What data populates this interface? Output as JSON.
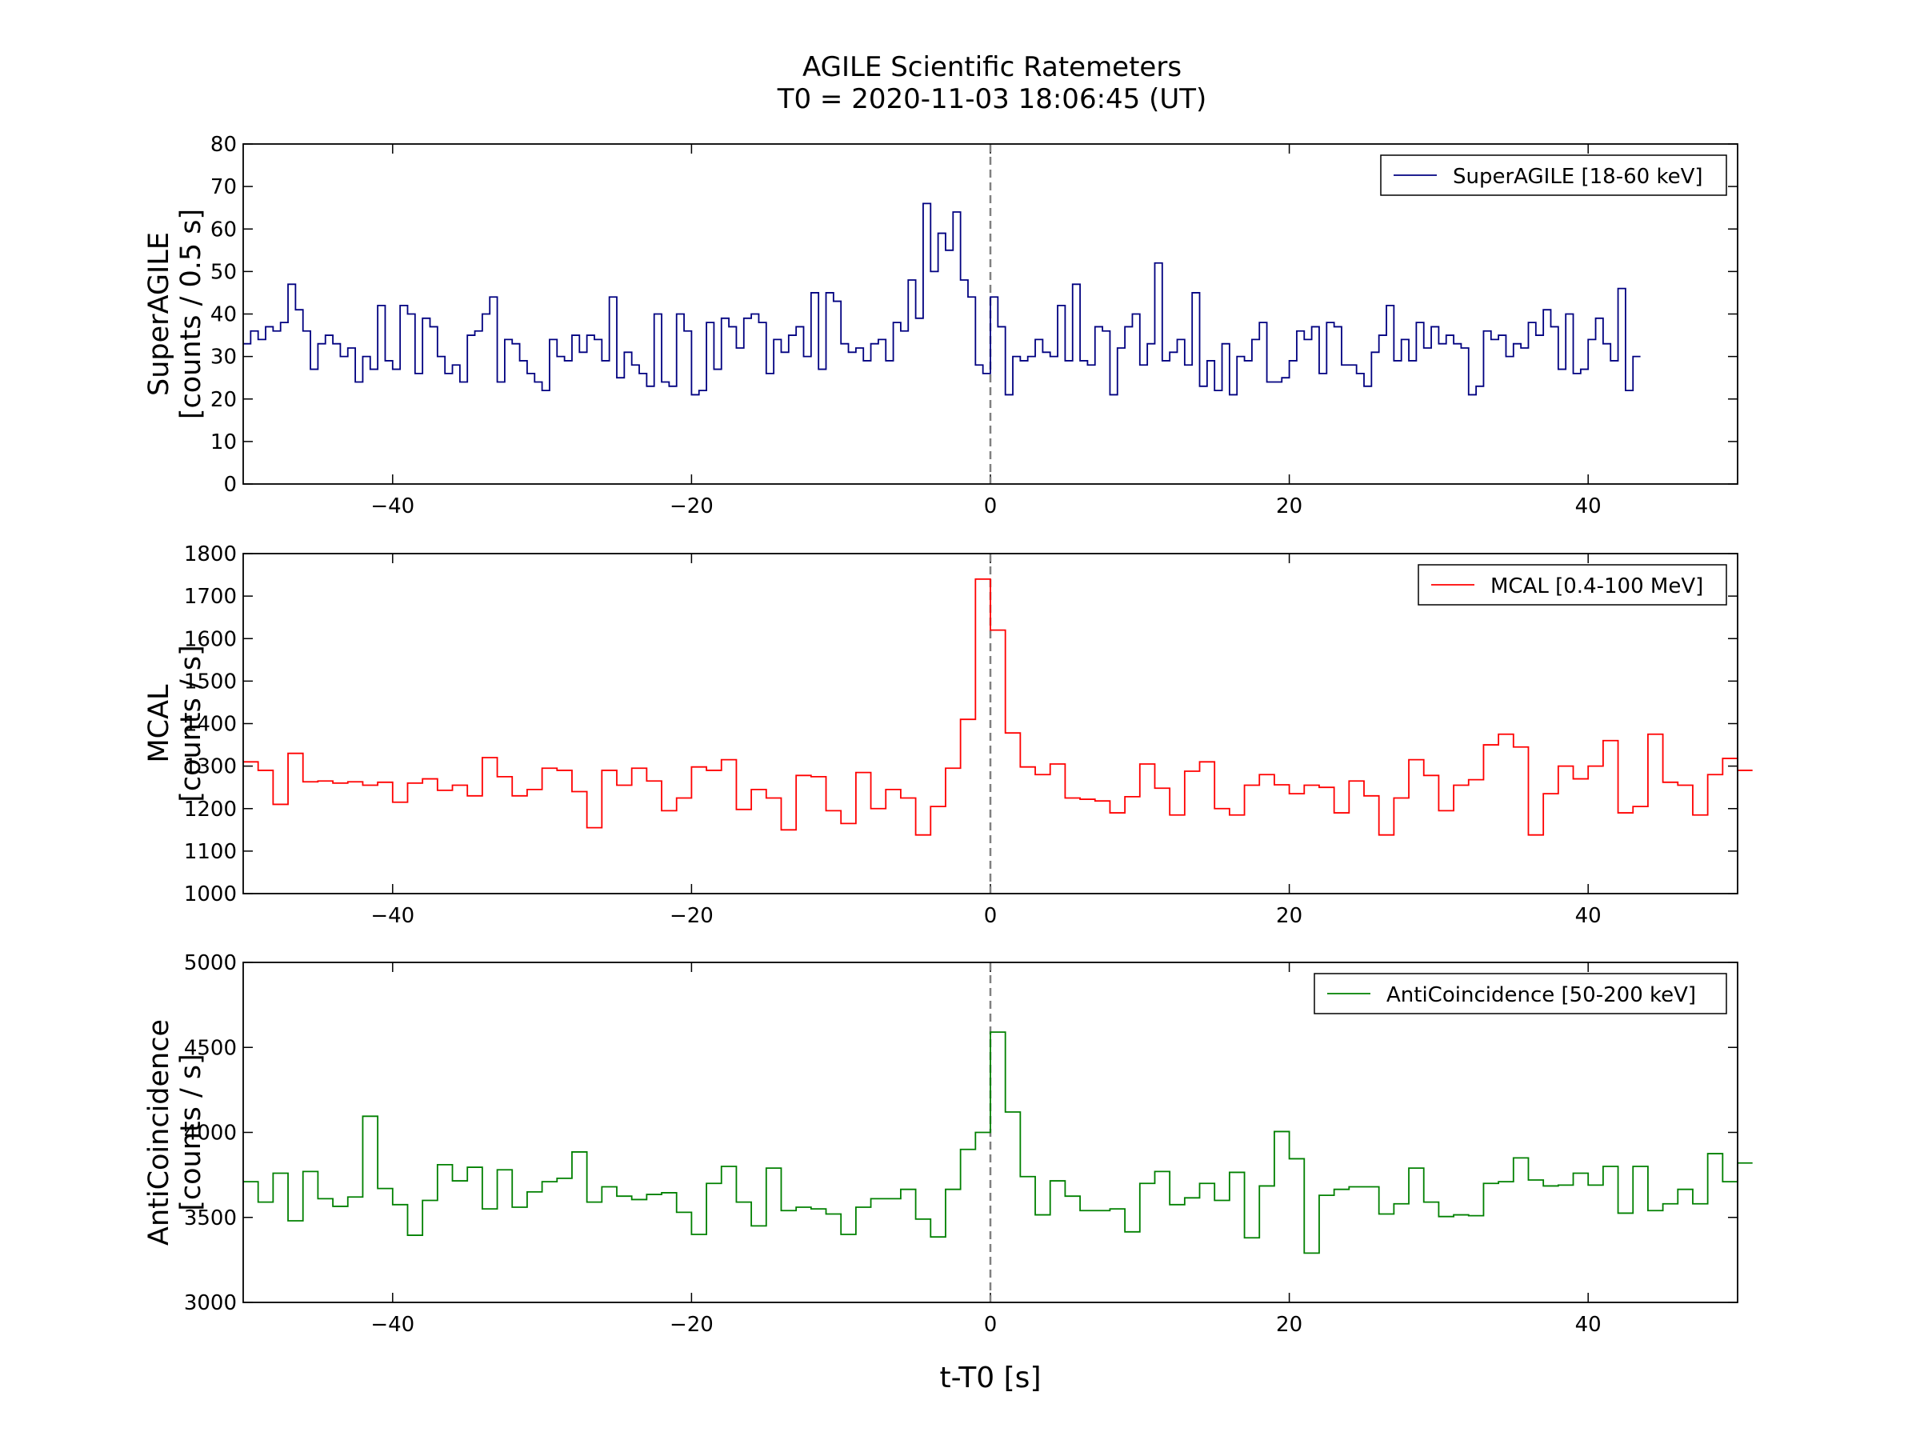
{
  "figure": {
    "title_line1": "AGILE Scientific Ratemeters",
    "title_line2": "T0 = 2020-11-03 18:06:45 (UT)",
    "xlabel": "t-T0 [s]"
  },
  "chart_data": [
    {
      "type": "line",
      "drawstyle": "steps-post",
      "ylabel_line1": "SuperAGILE",
      "ylabel_line2": "[counts / 0.5 s]",
      "legend": "SuperAGILE [18-60 keV]",
      "legend_position": "top-right",
      "color": "#000080",
      "xlim": [
        -50,
        50
      ],
      "ylim": [
        0,
        80
      ],
      "xticks": [
        -40,
        -20,
        0,
        20,
        40
      ],
      "xtick_labels": [
        "−40",
        "−20",
        "0",
        "20",
        "40"
      ],
      "yticks": [
        0,
        10,
        20,
        30,
        40,
        50,
        60,
        70,
        80
      ],
      "ytick_labels": [
        "0",
        "10",
        "20",
        "30",
        "40",
        "50",
        "60",
        "70",
        "80"
      ],
      "marker_line_x": 0,
      "x_start": -50,
      "bin_width": 0.5,
      "values": [
        33,
        36,
        34,
        37,
        36,
        38,
        47,
        41,
        36,
        27,
        33,
        35,
        33,
        30,
        32,
        24,
        30,
        27,
        42,
        29,
        27,
        42,
        40,
        26,
        39,
        37,
        30,
        26,
        28,
        24,
        35,
        36,
        40,
        44,
        24,
        34,
        33,
        29,
        26,
        24,
        22,
        34,
        30,
        29,
        35,
        31,
        35,
        34,
        29,
        44,
        25,
        31,
        28,
        26,
        23,
        40,
        24,
        23,
        40,
        36,
        21,
        22,
        38,
        27,
        39,
        37,
        32,
        39,
        40,
        38,
        26,
        34,
        31,
        35,
        37,
        30,
        45,
        27,
        45,
        43,
        33,
        31,
        32,
        29,
        33,
        34,
        29,
        38,
        36,
        48,
        39,
        66,
        50,
        59,
        55,
        64,
        48,
        44,
        28,
        26,
        44,
        37,
        21,
        30,
        29,
        30,
        34,
        31,
        30,
        42,
        29,
        47,
        29,
        28,
        37,
        36,
        21,
        32,
        37,
        40,
        28,
        33,
        52,
        29,
        31,
        34,
        28,
        45,
        23,
        29,
        22,
        33,
        21,
        30,
        29,
        34,
        38,
        24,
        24,
        25,
        29,
        36,
        34,
        37,
        26,
        38,
        37,
        28,
        28,
        26,
        23,
        31,
        35,
        42,
        29,
        34,
        29,
        38,
        32,
        37,
        33,
        35,
        33,
        32,
        21,
        23,
        36,
        34,
        35,
        30,
        33,
        32,
        38,
        35,
        41,
        37,
        27,
        40,
        26,
        27,
        34,
        39,
        33,
        29,
        46,
        22,
        30
      ]
    },
    {
      "type": "line",
      "drawstyle": "steps-post",
      "ylabel_line1": "MCAL",
      "ylabel_line2": "[counts / s]",
      "legend": "MCAL [0.4-100 MeV]",
      "legend_position": "top-right",
      "color": "#ff0000",
      "xlim": [
        -50,
        50
      ],
      "ylim": [
        1000,
        1800
      ],
      "xticks": [
        -40,
        -20,
        0,
        20,
        40
      ],
      "xtick_labels": [
        "−40",
        "−20",
        "0",
        "20",
        "40"
      ],
      "yticks": [
        1000,
        1100,
        1200,
        1300,
        1400,
        1500,
        1600,
        1700,
        1800
      ],
      "ytick_labels": [
        "1000",
        "1100",
        "1200",
        "1300",
        "1400",
        "1500",
        "1600",
        "1700",
        "1800"
      ],
      "marker_line_x": 0,
      "x_start": -50,
      "bin_width": 1,
      "values": [
        1310,
        1290,
        1210,
        1330,
        1263,
        1265,
        1260,
        1263,
        1255,
        1262,
        1215,
        1260,
        1270,
        1243,
        1255,
        1230,
        1320,
        1275,
        1230,
        1245,
        1295,
        1290,
        1240,
        1155,
        1290,
        1255,
        1295,
        1265,
        1195,
        1225,
        1298,
        1290,
        1315,
        1198,
        1245,
        1225,
        1150,
        1278,
        1275,
        1195,
        1165,
        1285,
        1200,
        1245,
        1225,
        1138,
        1205,
        1295,
        1410,
        1740,
        1620,
        1378,
        1298,
        1280,
        1305,
        1225,
        1222,
        1218,
        1190,
        1228,
        1305,
        1248,
        1185,
        1288,
        1310,
        1200,
        1185,
        1255,
        1280,
        1256,
        1235,
        1255,
        1250,
        1190,
        1265,
        1230,
        1138,
        1225,
        1315,
        1278,
        1195,
        1255,
        1268,
        1350,
        1375,
        1345,
        1138,
        1235,
        1300,
        1270,
        1300,
        1360,
        1190,
        1205,
        1375,
        1262,
        1255,
        1185,
        1280,
        1318,
        1290
      ]
    },
    {
      "type": "line",
      "drawstyle": "steps-post",
      "ylabel_line1": "AntiCoincidence",
      "ylabel_line2": "[counts / s]",
      "legend": "AntiCoincidence [50-200 keV]",
      "legend_position": "top-right",
      "color": "#008000",
      "xlim": [
        -50,
        50
      ],
      "ylim": [
        3000,
        5000
      ],
      "xticks": [
        -40,
        -20,
        0,
        20,
        40
      ],
      "xtick_labels": [
        "−40",
        "−20",
        "0",
        "20",
        "40"
      ],
      "yticks": [
        3000,
        3500,
        4000,
        4500,
        5000
      ],
      "ytick_labels": [
        "3000",
        "3500",
        "4000",
        "4500",
        "5000"
      ],
      "marker_line_x": 0,
      "x_start": -50,
      "bin_width": 1,
      "values": [
        3710,
        3590,
        3760,
        3480,
        3770,
        3610,
        3565,
        3620,
        4095,
        3670,
        3575,
        3395,
        3600,
        3810,
        3715,
        3795,
        3550,
        3780,
        3560,
        3650,
        3710,
        3730,
        3885,
        3590,
        3680,
        3625,
        3605,
        3635,
        3645,
        3530,
        3400,
        3700,
        3800,
        3590,
        3450,
        3790,
        3540,
        3560,
        3550,
        3520,
        3400,
        3560,
        3610,
        3610,
        3665,
        3490,
        3385,
        3665,
        3900,
        4000,
        4590,
        4120,
        3740,
        3515,
        3715,
        3625,
        3540,
        3540,
        3550,
        3415,
        3700,
        3770,
        3575,
        3615,
        3700,
        3600,
        3765,
        3380,
        3685,
        4005,
        3845,
        3290,
        3630,
        3665,
        3680,
        3680,
        3520,
        3580,
        3790,
        3590,
        3505,
        3515,
        3510,
        3700,
        3710,
        3850,
        3720,
        3685,
        3690,
        3760,
        3690,
        3800,
        3525,
        3800,
        3540,
        3580,
        3665,
        3580,
        3875,
        3710,
        3820
      ]
    }
  ]
}
